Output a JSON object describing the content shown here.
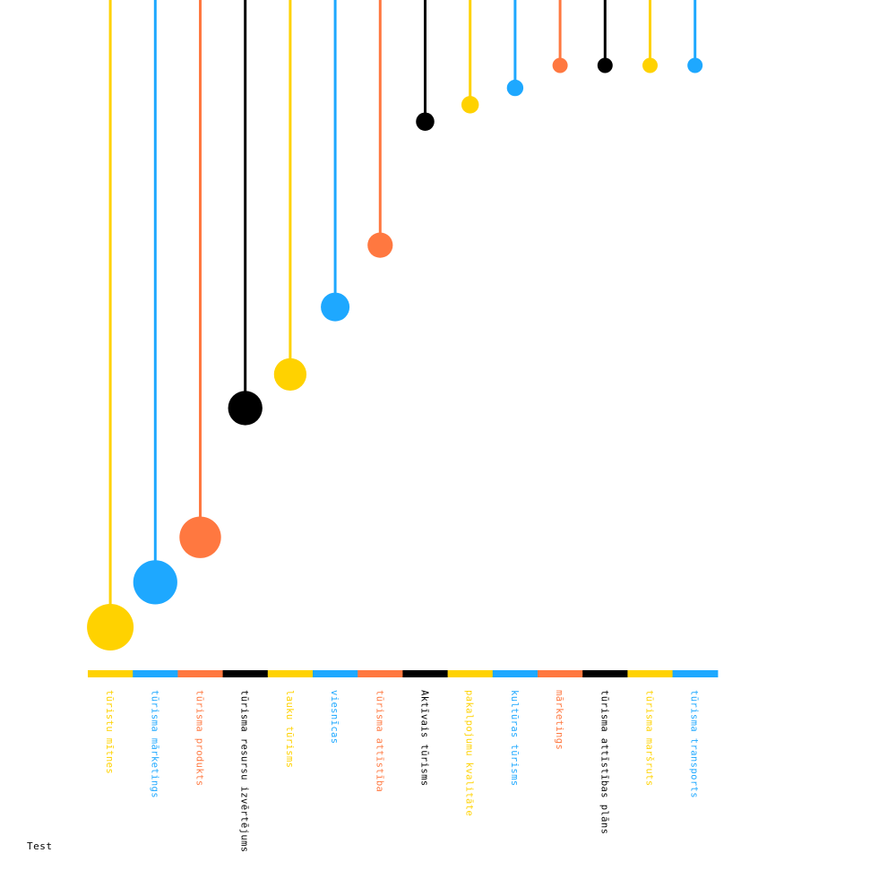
{
  "chart_data": {
    "type": "lollipop",
    "grid": false,
    "legend": "none",
    "categories": [
      "tūristu mītnes",
      "tūrisma mārketings",
      "tūrisma produkts",
      "tūrisma resursu izvērtējums",
      "lauku tūrisms",
      "viesnīcas",
      "tūrisma attīstība",
      "Aktīvais tūrisms",
      "pakalpojumu kvalitāte",
      "kultūras tūrisms",
      "mārketings",
      "tūrisma attīstības plāns",
      "tūrisma maršruts",
      "tūrisma transports"
    ],
    "values": [
      100,
      92,
      84,
      61,
      55,
      43,
      32,
      10,
      7,
      4,
      0,
      0,
      0,
      0
    ],
    "ylim": [
      0,
      100
    ],
    "colors": [
      "#FFD200",
      "#1EA8FF",
      "#FF7840",
      "#000000",
      "#FFD200",
      "#1EA8FF",
      "#FF7840",
      "#000000",
      "#FFD200",
      "#1EA8FF",
      "#FF7840",
      "#000000",
      "#FFD200",
      "#1EA8FF"
    ]
  },
  "footer": {
    "label": "Test"
  }
}
